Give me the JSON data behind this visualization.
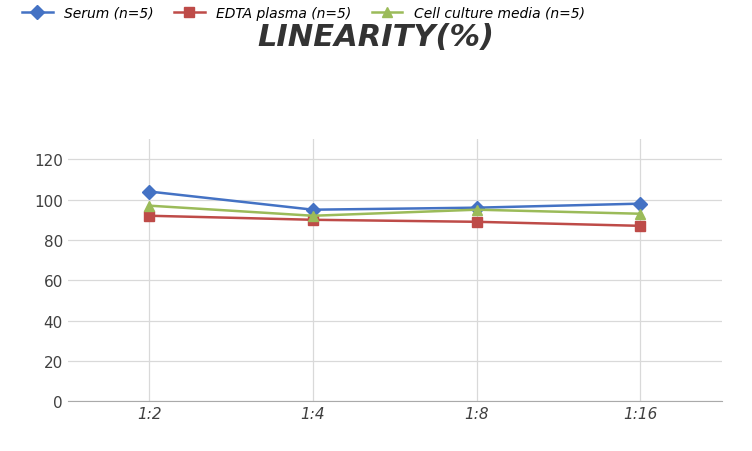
{
  "title": "LINEARITY(%)",
  "x_labels": [
    "1:2",
    "1:4",
    "1:8",
    "1:16"
  ],
  "x_positions": [
    0,
    1,
    2,
    3
  ],
  "series": [
    {
      "label": "Serum (n=5)",
      "values": [
        104,
        95,
        96,
        98
      ],
      "color": "#4472C4",
      "marker": "D",
      "markersize": 7,
      "linewidth": 1.8
    },
    {
      "label": "EDTA plasma (n=5)",
      "values": [
        92,
        90,
        89,
        87
      ],
      "color": "#BE4B48",
      "marker": "s",
      "markersize": 7,
      "linewidth": 1.8
    },
    {
      "label": "Cell culture media (n=5)",
      "values": [
        97,
        92,
        95,
        93
      ],
      "color": "#9BBB59",
      "marker": "^",
      "markersize": 7,
      "linewidth": 1.8
    }
  ],
  "ylim": [
    0,
    130
  ],
  "yticks": [
    0,
    20,
    40,
    60,
    80,
    100,
    120
  ],
  "grid_color": "#D9D9D9",
  "background_color": "#FFFFFF",
  "title_fontsize": 22,
  "legend_fontsize": 10,
  "tick_fontsize": 11
}
